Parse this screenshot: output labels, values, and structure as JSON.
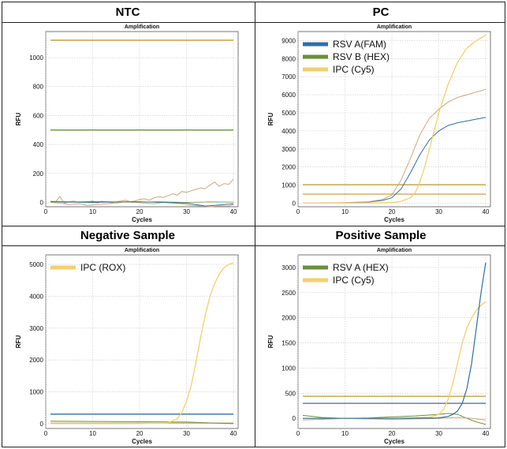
{
  "panels": {
    "ntc": "NTC",
    "pc": "PC",
    "negative": "Negative Sample",
    "positive": "Positive Sample"
  },
  "colors": {
    "blue": "#2f6fa8",
    "green": "#6a8f3a",
    "yellow": "#f5cf6b",
    "tan": "#c9a97c",
    "gold": "#c9a045"
  },
  "chart_data": [
    {
      "type": "line",
      "title": "Amplification",
      "xlabel": "Cycles",
      "ylabel": "RFU",
      "xlim": [
        0,
        41
      ],
      "ylim": [
        -30,
        1180
      ],
      "xticks": [
        0,
        10,
        20,
        30,
        40
      ],
      "yticks": [
        0,
        200,
        400,
        600,
        800,
        1000
      ],
      "grid": true,
      "legend": [],
      "series": [
        {
          "color": "#c9a045",
          "width": 1.4,
          "x": [
            1,
            40
          ],
          "values": [
            1120,
            1120
          ]
        },
        {
          "color": "#6a8f3a",
          "width": 1.4,
          "x": [
            1,
            40
          ],
          "values": [
            500,
            500
          ]
        },
        {
          "color": "#c9a97c",
          "width": 1,
          "x": [
            1,
            2,
            3,
            4,
            5,
            6,
            7,
            8,
            9,
            10,
            11,
            12,
            13,
            14,
            15,
            16,
            17,
            18,
            19,
            20,
            21,
            22,
            23,
            24,
            25,
            26,
            27,
            28,
            29,
            30,
            31,
            32,
            33,
            34,
            35,
            36,
            37,
            38,
            39,
            40
          ],
          "values": [
            5,
            0,
            40,
            -5,
            5,
            10,
            0,
            2,
            5,
            10,
            -5,
            8,
            3,
            -2,
            5,
            10,
            15,
            5,
            10,
            20,
            25,
            15,
            30,
            40,
            35,
            45,
            60,
            50,
            75,
            70,
            80,
            90,
            100,
            95,
            120,
            140,
            110,
            130,
            125,
            160
          ]
        },
        {
          "color": "#c9a97c",
          "width": 1,
          "x": [
            1,
            3,
            5,
            7,
            9,
            11,
            13,
            15,
            17,
            19,
            21,
            23,
            25,
            27,
            29,
            31,
            33,
            35,
            37,
            39,
            40
          ],
          "values": [
            0,
            -5,
            -15,
            -10,
            -20,
            -15,
            -10,
            -5,
            5,
            0,
            -5,
            -10,
            0,
            -5,
            -10,
            -20,
            -25,
            -30,
            -25,
            -25,
            -15
          ]
        },
        {
          "color": "#2f6fa8",
          "width": 1,
          "x": [
            1,
            5,
            10,
            15,
            20,
            25,
            30,
            32,
            34,
            36,
            38,
            40
          ],
          "values": [
            5,
            2,
            0,
            3,
            5,
            0,
            -5,
            -15,
            -25,
            -20,
            -15,
            -10
          ]
        },
        {
          "color": "#6a8f3a",
          "width": 0.8,
          "x": [
            1,
            6,
            12,
            18,
            24,
            30,
            35,
            40
          ],
          "values": [
            8,
            4,
            6,
            2,
            5,
            0,
            3,
            2
          ]
        }
      ]
    },
    {
      "type": "line",
      "title": "Amplification",
      "xlabel": "Cycles",
      "ylabel": "RFU",
      "xlim": [
        0,
        41
      ],
      "ylim": [
        -200,
        9500
      ],
      "xticks": [
        0,
        10,
        20,
        30,
        40
      ],
      "yticks": [
        0,
        1000,
        2000,
        3000,
        4000,
        5000,
        6000,
        7000,
        8000,
        9000
      ],
      "grid": true,
      "legend": [
        {
          "label": "RSV A(FAM)",
          "color": "#2f6fa8"
        },
        {
          "label": "RSV B (HEX)",
          "color": "#6a8f3a"
        },
        {
          "label": "IPC (Cy5)",
          "color": "#f5cf6b"
        }
      ],
      "series": [
        {
          "color": "#c9a045",
          "width": 1.4,
          "x": [
            1,
            40
          ],
          "values": [
            1020,
            1020
          ]
        },
        {
          "color": "#c9a045",
          "width": 1.2,
          "x": [
            1,
            40
          ],
          "values": [
            500,
            500
          ]
        },
        {
          "color": "#2f6fa8",
          "width": 1,
          "x": [
            1,
            5,
            10,
            15,
            18,
            20,
            22,
            24,
            26,
            28,
            30,
            32,
            34,
            36,
            38,
            40
          ],
          "values": [
            0,
            0,
            20,
            60,
            150,
            300,
            800,
            1700,
            2700,
            3500,
            4000,
            4300,
            4450,
            4550,
            4650,
            4750
          ]
        },
        {
          "color": "#c9a97c",
          "width": 1,
          "x": [
            1,
            5,
            10,
            15,
            18,
            20,
            22,
            24,
            26,
            28,
            30,
            32,
            34,
            36,
            38,
            40
          ],
          "values": [
            0,
            0,
            30,
            80,
            200,
            450,
            1300,
            2500,
            3800,
            4700,
            5200,
            5600,
            5850,
            6000,
            6150,
            6300
          ]
        },
        {
          "color": "#f5cf6b",
          "width": 1.3,
          "x": [
            1,
            10,
            15,
            20,
            22,
            24,
            25,
            26,
            27,
            28,
            29,
            30,
            31,
            32,
            34,
            36,
            38,
            40
          ],
          "values": [
            0,
            0,
            0,
            30,
            100,
            300,
            600,
            1200,
            2000,
            3000,
            4000,
            5000,
            5800,
            6600,
            7800,
            8600,
            9000,
            9300
          ]
        }
      ]
    },
    {
      "type": "line",
      "title": "Amplification",
      "xlabel": "Cycles",
      "ylabel": "RFU",
      "xlim": [
        0,
        41
      ],
      "ylim": [
        -150,
        5300
      ],
      "xticks": [
        0,
        10,
        20,
        30,
        40
      ],
      "yticks": [
        0,
        1000,
        2000,
        3000,
        4000,
        5000
      ],
      "grid": true,
      "legend": [
        {
          "label": "IPC (ROX)",
          "color": "#f5cf6b"
        }
      ],
      "series": [
        {
          "color": "#2f6fa8",
          "width": 1.3,
          "x": [
            1,
            40
          ],
          "values": [
            300,
            300
          ]
        },
        {
          "color": "#c9a045",
          "width": 1,
          "x": [
            1,
            40
          ],
          "values": [
            20,
            20
          ]
        },
        {
          "color": "#6a8f3a",
          "width": 1,
          "x": [
            1,
            10,
            20,
            30,
            32,
            34,
            36,
            38,
            40
          ],
          "values": [
            80,
            70,
            60,
            50,
            40,
            30,
            20,
            10,
            0
          ]
        },
        {
          "color": "#f5cf6b",
          "width": 1.3,
          "x": [
            1,
            10,
            20,
            26,
            28,
            29,
            30,
            31,
            32,
            33,
            34,
            35,
            36,
            37,
            38,
            39,
            40
          ],
          "values": [
            0,
            0,
            0,
            30,
            150,
            350,
            700,
            1200,
            1900,
            2700,
            3400,
            4000,
            4400,
            4700,
            4900,
            5000,
            5050
          ]
        }
      ]
    },
    {
      "type": "line",
      "title": "Amplification",
      "xlabel": "Cycles",
      "ylabel": "RFU",
      "xlim": [
        0,
        41
      ],
      "ylim": [
        -200,
        3250
      ],
      "xticks": [
        0,
        10,
        20,
        30,
        40
      ],
      "yticks": [
        0,
        500,
        1000,
        1500,
        2000,
        2500,
        3000
      ],
      "grid": true,
      "legend": [
        {
          "label": "RSV A (HEX)",
          "color": "#6a8f3a"
        },
        {
          "label": "IPC (Cy5)",
          "color": "#f5cf6b"
        }
      ],
      "series": [
        {
          "color": "#c9a045",
          "width": 1.4,
          "x": [
            1,
            40
          ],
          "values": [
            440,
            440
          ]
        },
        {
          "color": "#2f6fa8",
          "width": 1.2,
          "x": [
            1,
            40
          ],
          "values": [
            300,
            300
          ]
        },
        {
          "color": "#6a8f3a",
          "width": 1,
          "x": [
            1,
            5,
            10,
            15,
            20,
            25,
            30,
            32,
            34,
            36,
            38,
            40
          ],
          "values": [
            60,
            20,
            0,
            10,
            30,
            50,
            80,
            100,
            80,
            0,
            -70,
            -120
          ]
        },
        {
          "color": "#c9a97c",
          "width": 1,
          "x": [
            1,
            5,
            10,
            15,
            20,
            25,
            30,
            32,
            34,
            36,
            38,
            40
          ],
          "values": [
            -30,
            -20,
            0,
            -10,
            -20,
            -10,
            0,
            10,
            20,
            10,
            -10,
            -30
          ]
        },
        {
          "color": "#f5cf6b",
          "width": 1.3,
          "x": [
            1,
            10,
            20,
            28,
            30,
            31,
            32,
            33,
            34,
            35,
            36,
            37,
            38,
            39,
            40
          ],
          "values": [
            0,
            0,
            0,
            20,
            80,
            180,
            380,
            700,
            1100,
            1500,
            1800,
            2000,
            2150,
            2250,
            2320
          ]
        },
        {
          "color": "#2f6fa8",
          "width": 1.2,
          "x": [
            1,
            10,
            20,
            30,
            32,
            33,
            34,
            35,
            36,
            37,
            38,
            39,
            40
          ],
          "values": [
            0,
            0,
            0,
            10,
            40,
            80,
            150,
            300,
            600,
            1100,
            1800,
            2500,
            3100
          ]
        }
      ]
    }
  ]
}
